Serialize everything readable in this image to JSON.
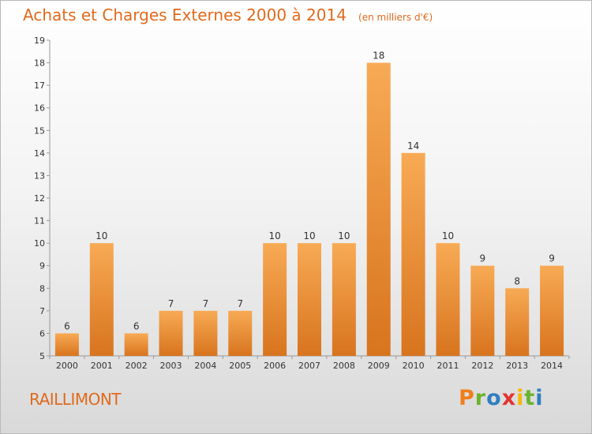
{
  "header": {
    "title": "Achats et Charges Externes 2000 à 2014",
    "unit": "(en milliers d'€)"
  },
  "footer": {
    "place": "RAILLIMONT",
    "brand": "Proxiti",
    "brand_colors": [
      "#f07f1a",
      "#6ab42d",
      "#2f7fc1",
      "#e2342f",
      "#f5b800",
      "#6ab42d",
      "#2f7fc1"
    ]
  },
  "colors": {
    "accent": "#e06a1c",
    "bar_light": "#f8aa55",
    "bar_dark": "#d8741e"
  },
  "chart_data": {
    "type": "bar",
    "title": "Achats et Charges Externes 2000 à 2014",
    "xlabel": "",
    "ylabel": "",
    "categories": [
      "2000",
      "2001",
      "2002",
      "2003",
      "2004",
      "2005",
      "2006",
      "2007",
      "2008",
      "2009",
      "2010",
      "2011",
      "2012",
      "2013",
      "2014"
    ],
    "values": [
      6,
      10,
      6,
      7,
      7,
      7,
      10,
      10,
      10,
      18,
      14,
      10,
      9,
      8,
      9
    ],
    "ylim": [
      5,
      19
    ],
    "yticks": [
      "5",
      "6",
      "7",
      "8",
      "9",
      "10",
      "11",
      "12",
      "13",
      "14",
      "15",
      "16",
      "17",
      "18",
      "19"
    ],
    "grid": false,
    "data_labels": true
  }
}
